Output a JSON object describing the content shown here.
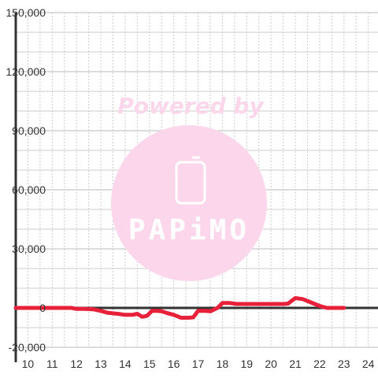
{
  "watermark": {
    "caption": "Powered by",
    "brand": "PAPiMO",
    "color": "#fcd7ec"
  },
  "colors": {
    "series": "#e8213a",
    "axis": "#333333",
    "grid_major": "#bbbbbb",
    "grid_minor": "#cccccc"
  },
  "chart_data": {
    "type": "line",
    "title": "",
    "xlabel": "",
    "ylabel": "",
    "xlim": [
      9.5,
      24.4
    ],
    "ylim": [
      -20000,
      150000
    ],
    "grid": true,
    "x_ticks": [
      10,
      11,
      12,
      13,
      14,
      15,
      16,
      17,
      18,
      19,
      20,
      21,
      22,
      23,
      24
    ],
    "x_tick_labels": [
      "10",
      "11",
      "12",
      "13",
      "14",
      "15",
      "16",
      "17",
      "18",
      "19",
      "20",
      "21",
      "22",
      "23",
      "24"
    ],
    "y_ticks": [
      -20000,
      0,
      30000,
      60000,
      90000,
      120000,
      150000
    ],
    "y_tick_labels": [
      "-20,000",
      "0",
      "30,000",
      "60,000",
      "90,000",
      "120,000",
      "150,000"
    ],
    "series": [
      {
        "x": [
          9.5,
          10,
          10.5,
          11,
          11.5,
          11.8,
          12.0,
          12.3,
          12.7,
          13.0,
          13.3,
          13.7,
          14.0,
          14.3,
          14.5,
          14.7,
          14.9,
          15.1,
          15.3,
          15.5,
          15.7,
          16.0,
          16.3,
          16.6,
          16.8,
          17.0,
          17.3,
          17.5,
          17.8,
          18.0,
          18.3,
          18.6,
          19.0,
          19.5,
          20.0,
          20.3,
          20.5,
          20.7,
          21.0,
          21.3,
          21.6,
          21.8,
          22.0,
          22.3,
          22.6,
          23.0
        ],
        "y": [
          0,
          0,
          0,
          0,
          0,
          0,
          -500,
          -500,
          -700,
          -1500,
          -2500,
          -3000,
          -3500,
          -3500,
          -3000,
          -4500,
          -4000,
          -1500,
          -1500,
          -1700,
          -2500,
          -3500,
          -5000,
          -5000,
          -4800,
          -1500,
          -1500,
          -1700,
          0,
          2500,
          2500,
          2000,
          2000,
          2000,
          2000,
          2000,
          2000,
          2200,
          5000,
          4500,
          3000,
          2000,
          1000,
          0,
          0,
          0
        ]
      }
    ]
  }
}
